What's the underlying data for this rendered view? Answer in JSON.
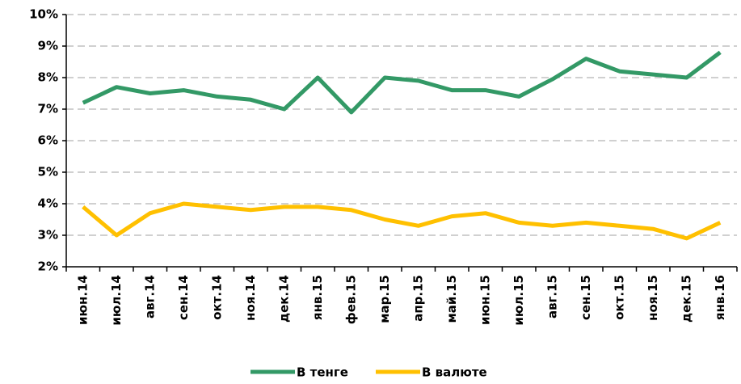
{
  "chart_data": {
    "type": "line",
    "categories": [
      "июн.14",
      "июл.14",
      "авг.14",
      "сен.14",
      "окт.14",
      "ноя.14",
      "дек.14",
      "янв.15",
      "фев.15",
      "мар.15",
      "апр.15",
      "май.15",
      "июн.15",
      "июл.15",
      "авг.15",
      "сен.15",
      "окт.15",
      "ноя.15",
      "дек.15",
      "янв.16"
    ],
    "series": [
      {
        "name": "В тенге",
        "color": "#339966",
        "values": [
          7.2,
          7.7,
          7.5,
          7.6,
          7.4,
          7.3,
          7.0,
          8.0,
          6.9,
          8.0,
          7.9,
          7.6,
          7.6,
          7.4,
          7.95,
          8.6,
          8.2,
          8.1,
          8.0,
          8.8
        ]
      },
      {
        "name": "В валюте",
        "color": "#ffc000",
        "values": [
          3.9,
          3.0,
          3.7,
          4.0,
          3.9,
          3.8,
          3.9,
          3.9,
          3.8,
          3.5,
          3.3,
          3.6,
          3.7,
          3.4,
          3.3,
          3.4,
          3.3,
          3.2,
          2.9,
          3.4
        ]
      }
    ],
    "ylim": [
      2,
      10
    ],
    "yticks": [
      {
        "value": 2,
        "label": "2%"
      },
      {
        "value": 3,
        "label": "3%"
      },
      {
        "value": 4,
        "label": "4%"
      },
      {
        "value": 5,
        "label": "5%"
      },
      {
        "value": 6,
        "label": "6%"
      },
      {
        "value": 7,
        "label": "7%"
      },
      {
        "value": 8,
        "label": "8%"
      },
      {
        "value": 9,
        "label": "9%"
      },
      {
        "value": 10,
        "label": "10%"
      }
    ],
    "grid": true,
    "legend": "bottom"
  }
}
